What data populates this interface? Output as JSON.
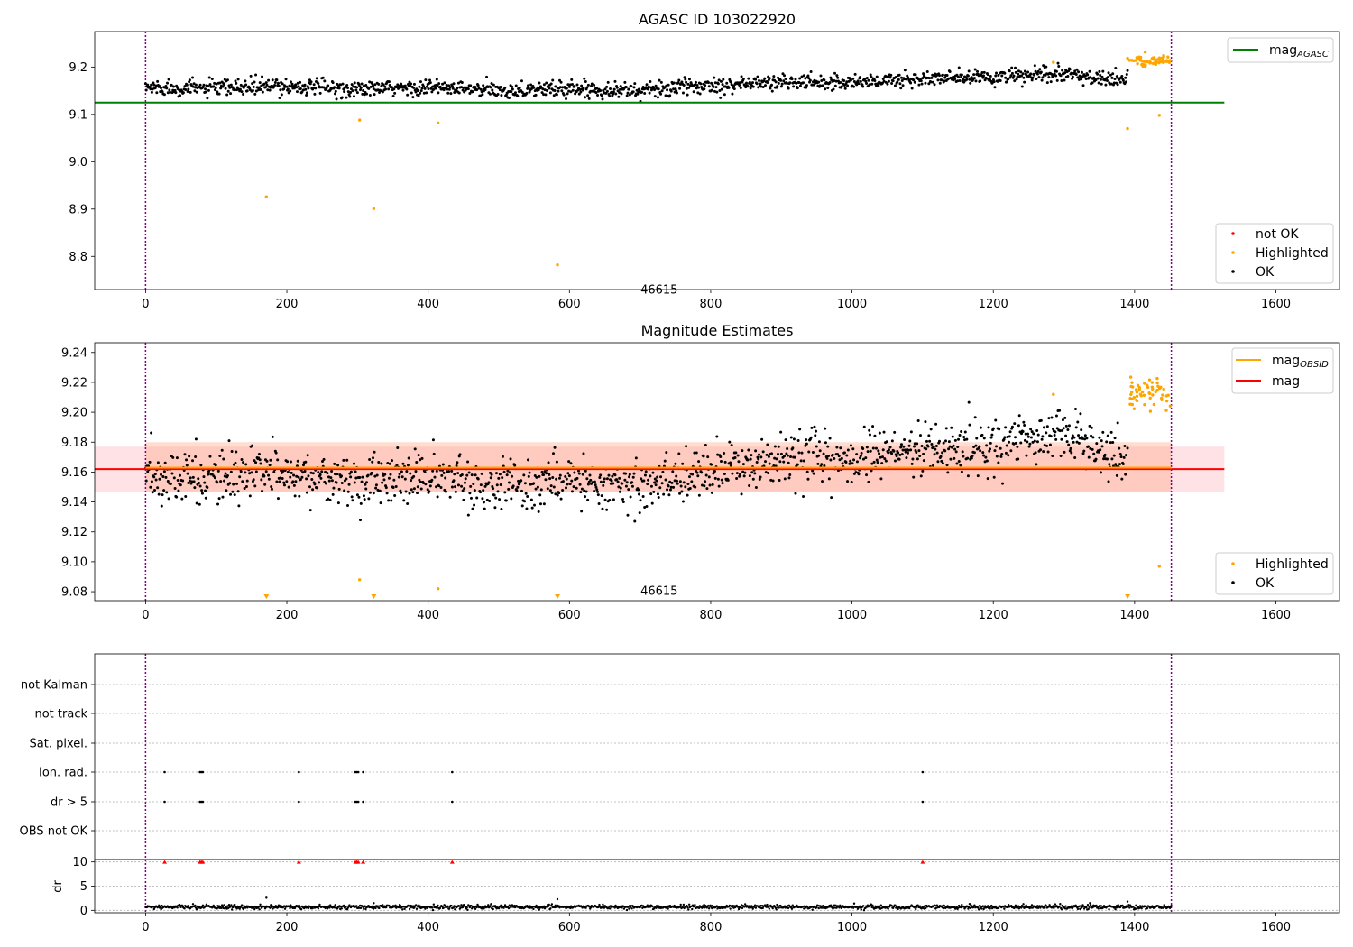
{
  "colors": {
    "ok": "#000000",
    "highlighted": "#ffa500",
    "not_ok": "#ff0000",
    "agasc_line": "#008000",
    "mag_line": "#ff0000",
    "mag_obsid_line": "#ffa500",
    "obs_boundary": "#800080",
    "band_pink": "#ffb6c1",
    "band_orange": "#ffa07a"
  },
  "chart_data": [
    {
      "type": "scatter",
      "title": "AGASC ID 103022920",
      "xlabel": "",
      "ylabel": "",
      "xlim": [
        -72,
        1690
      ],
      "ylim": [
        8.73,
        9.275
      ],
      "xticks": [
        0,
        200,
        400,
        600,
        800,
        1000,
        1200,
        1400,
        1600
      ],
      "yticks": [
        8.8,
        8.9,
        9.0,
        9.1,
        9.2
      ],
      "ytick_labels": [
        "8.8",
        "8.9",
        "9.0",
        "9.1",
        "9.2"
      ],
      "mag_agasc": 9.125,
      "mag_agasc_xrange": [
        -72,
        1527
      ],
      "obs_boundaries": [
        0,
        1452
      ],
      "obsid_label": "46615",
      "obsid_label_pos": [
        727,
        8.76
      ],
      "ok_trend": [
        [
          0,
          9.157
        ],
        [
          100,
          9.155
        ],
        [
          200,
          9.16
        ],
        [
          300,
          9.153
        ],
        [
          400,
          9.157
        ],
        [
          500,
          9.15
        ],
        [
          600,
          9.155
        ],
        [
          700,
          9.15
        ],
        [
          800,
          9.162
        ],
        [
          900,
          9.168
        ],
        [
          1000,
          9.168
        ],
        [
          1100,
          9.175
        ],
        [
          1200,
          9.178
        ],
        [
          1300,
          9.185
        ],
        [
          1390,
          9.17
        ]
      ],
      "ok_scatter": 0.012,
      "ok_count": 1400,
      "highlighted_cluster": {
        "x_range": [
          1390,
          1452
        ],
        "y_center": 9.213,
        "y_spread": 0.008,
        "count": 55
      },
      "highlighted_points": [
        [
          171,
          8.926
        ],
        [
          303,
          9.088
        ],
        [
          323,
          8.901
        ],
        [
          414,
          9.082
        ],
        [
          583,
          8.782
        ],
        [
          1390,
          9.07
        ],
        [
          1435,
          9.098
        ],
        [
          1285,
          9.21
        ]
      ],
      "legends": [
        {
          "position": "top-right",
          "entries": [
            {
              "label": "mag",
              "subscript": "AGASC",
              "marker": "line",
              "color": "#008000"
            }
          ]
        },
        {
          "position": "bottom-right",
          "entries": [
            {
              "label": "not OK",
              "marker": "dot",
              "color": "#ff0000"
            },
            {
              "label": "Highlighted",
              "marker": "dot",
              "color": "#ffa500"
            },
            {
              "label": "OK",
              "marker": "dot",
              "color": "#000000"
            }
          ]
        }
      ]
    },
    {
      "type": "scatter",
      "title": "Magnitude Estimates",
      "xlabel": "",
      "ylabel": "",
      "xlim": [
        -72,
        1690
      ],
      "ylim": [
        9.074,
        9.2465
      ],
      "xticks": [
        0,
        200,
        400,
        600,
        800,
        1000,
        1200,
        1400,
        1600
      ],
      "yticks": [
        9.08,
        9.1,
        9.12,
        9.14,
        9.16,
        9.18,
        9.2,
        9.22,
        9.24
      ],
      "ytick_labels": [
        "9.08",
        "9.10",
        "9.12",
        "9.14",
        "9.16",
        "9.18",
        "9.20",
        "9.22",
        "9.24"
      ],
      "mag": 9.162,
      "mag_band": [
        9.147,
        9.177
      ],
      "mag_obsid": 9.163,
      "mag_obsid_band": [
        9.147,
        9.18
      ],
      "obs_boundaries": [
        0,
        1452
      ],
      "obsid_label": "46615",
      "obsid_label_pos": [
        727,
        9.078
      ],
      "ok_trend": [
        [
          0,
          9.157
        ],
        [
          100,
          9.155
        ],
        [
          200,
          9.16
        ],
        [
          300,
          9.153
        ],
        [
          400,
          9.157
        ],
        [
          500,
          9.15
        ],
        [
          600,
          9.155
        ],
        [
          700,
          9.15
        ],
        [
          800,
          9.162
        ],
        [
          900,
          9.168
        ],
        [
          1000,
          9.168
        ],
        [
          1100,
          9.175
        ],
        [
          1200,
          9.178
        ],
        [
          1300,
          9.185
        ],
        [
          1390,
          9.17
        ]
      ],
      "ok_scatter": 0.012,
      "ok_count": 1400,
      "highlighted_cluster": {
        "x_range": [
          1390,
          1452
        ],
        "y_center": 9.213,
        "y_spread": 0.008,
        "count": 55
      },
      "highlighted_points": [
        [
          303,
          9.088
        ],
        [
          414,
          9.082
        ],
        [
          1435,
          9.097
        ],
        [
          1285,
          9.212
        ]
      ],
      "below_range_markers_x": [
        171,
        323,
        583,
        1390
      ],
      "legends": [
        {
          "position": "top-right",
          "entries": [
            {
              "label": "mag",
              "subscript": "OBSID",
              "marker": "line",
              "color": "#ffa500"
            },
            {
              "label": "mag",
              "subscript": "",
              "marker": "line",
              "color": "#ff0000"
            }
          ]
        },
        {
          "position": "bottom-right",
          "entries": [
            {
              "label": "Highlighted",
              "marker": "dot",
              "color": "#ffa500"
            },
            {
              "label": "OK",
              "marker": "dot",
              "color": "#000000"
            }
          ]
        }
      ]
    },
    {
      "type": "scatter",
      "title": "",
      "xlabel": "",
      "ylabel": "",
      "xlim": [
        -72,
        1690
      ],
      "categories": [
        "not Kalman",
        "not track",
        "Sat. pixel.",
        "Ion. rad.",
        "dr > 5",
        "OBS not OK"
      ],
      "flag_points": {
        "Ion. rad.": [
          27,
          77,
          79,
          81,
          217,
          297,
          299,
          301,
          308,
          434,
          1100
        ],
        "dr > 5": [
          27,
          77,
          79,
          81,
          217,
          297,
          299,
          301,
          308,
          434,
          1100
        ]
      },
      "obs_boundaries": [
        0,
        1452
      ]
    },
    {
      "type": "scatter",
      "title": "",
      "xlabel": "",
      "ylabel": "dr",
      "xlim": [
        -72,
        1690
      ],
      "ylim": [
        -0.5,
        10.5
      ],
      "xticks": [
        0,
        200,
        400,
        600,
        800,
        1000,
        1200,
        1400,
        1600
      ],
      "yticks": [
        0,
        5,
        10
      ],
      "ytick_labels": [
        "0",
        "5",
        "10"
      ],
      "dr_threshold": 5,
      "dr_baseline": 0.7,
      "dr_spread": 0.35,
      "dr_count": 1450,
      "dr_outliers": [
        [
          171,
          2.6
        ],
        [
          583,
          2.3
        ],
        [
          1390,
          1.8
        ],
        [
          323,
          1.5
        ]
      ],
      "capped_red_markers_x": [
        27,
        77,
        79,
        81,
        217,
        297,
        299,
        301,
        308,
        434,
        1100
      ],
      "obs_boundaries": [
        0,
        1452
      ]
    }
  ]
}
